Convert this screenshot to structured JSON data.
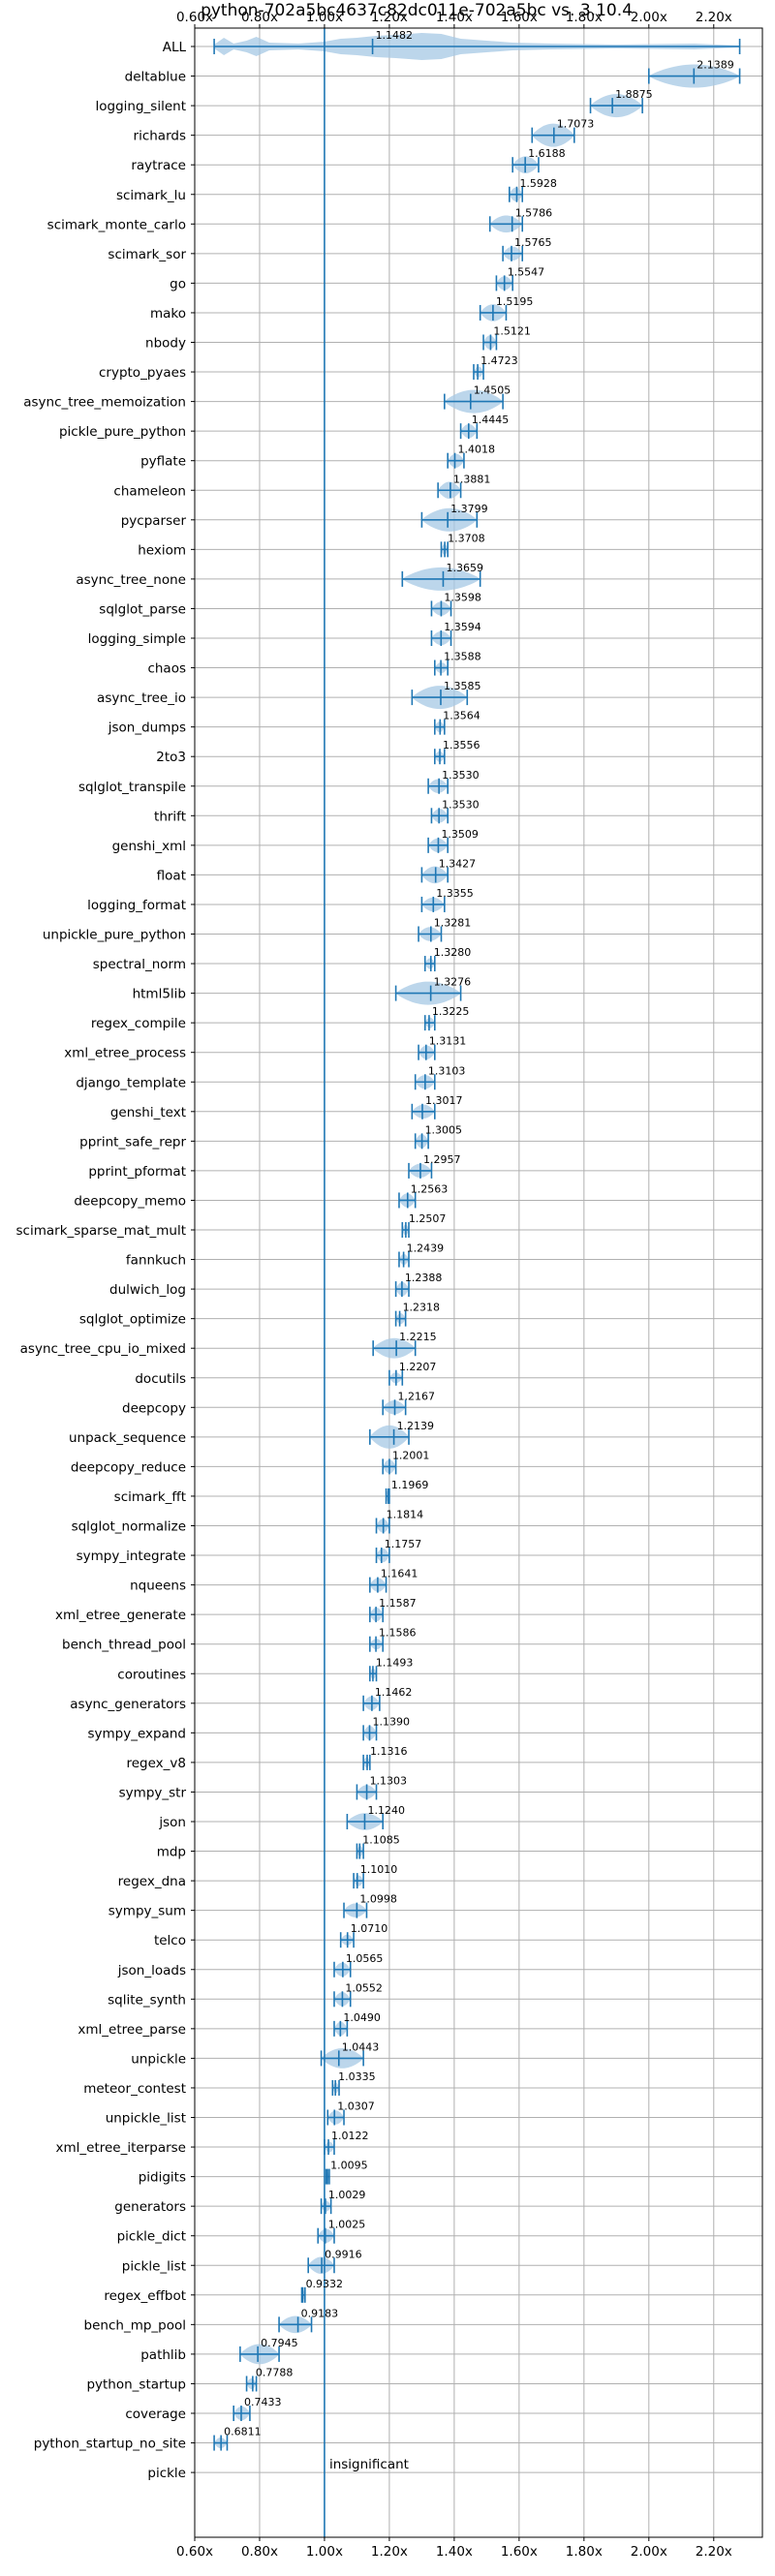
{
  "chart_data": {
    "type": "violin",
    "title": "python-702a5bc4637c82dc011e-702a5bc vs. 3.10.4",
    "xlabel": "",
    "ylabel": "",
    "xlim": [
      0.6,
      2.35
    ],
    "grid": true,
    "xticks": [
      0.6,
      0.8,
      1.0,
      1.2,
      1.4,
      1.6,
      1.8,
      2.0,
      2.2
    ],
    "xtick_labels": [
      "0.60x",
      "0.80x",
      "1.00x",
      "1.20x",
      "1.40x",
      "1.60x",
      "1.80x",
      "2.00x",
      "2.20x"
    ],
    "reference_line": 1.0,
    "annotation": "insignificant",
    "colors": {
      "accent": "#1f77b4",
      "violin": "#a6c8e4",
      "grid": "#b0b0b0"
    },
    "benchmarks": [
      {
        "name": "ALL",
        "value": 1.1482,
        "label": "1.1482",
        "min": 0.66,
        "max": 2.28,
        "spread": 0.04,
        "shape": "all"
      },
      {
        "name": "deltablue",
        "value": 2.1389,
        "label": "2.1389",
        "min": 2.0,
        "max": 2.28,
        "spread": 0.1
      },
      {
        "name": "logging_silent",
        "value": 1.8875,
        "label": "1.8875",
        "min": 1.82,
        "max": 1.98,
        "spread": 0.07
      },
      {
        "name": "richards",
        "value": 1.7073,
        "label": "1.7073",
        "min": 1.64,
        "max": 1.77,
        "spread": 0.05
      },
      {
        "name": "raytrace",
        "value": 1.6188,
        "label": "1.6188",
        "min": 1.58,
        "max": 1.66,
        "spread": 0.03
      },
      {
        "name": "scimark_lu",
        "value": 1.5928,
        "label": "1.5928",
        "min": 1.57,
        "max": 1.61,
        "spread": 0.02
      },
      {
        "name": "scimark_monte_carlo",
        "value": 1.5786,
        "label": "1.5786",
        "min": 1.51,
        "max": 1.61,
        "spread": 0.03
      },
      {
        "name": "scimark_sor",
        "value": 1.5765,
        "label": "1.5765",
        "min": 1.55,
        "max": 1.61,
        "spread": 0.02
      },
      {
        "name": "go",
        "value": 1.5547,
        "label": "1.5547",
        "min": 1.53,
        "max": 1.58,
        "spread": 0.02
      },
      {
        "name": "mako",
        "value": 1.5195,
        "label": "1.5195",
        "min": 1.48,
        "max": 1.56,
        "spread": 0.03
      },
      {
        "name": "nbody",
        "value": 1.5121,
        "label": "1.5121",
        "min": 1.49,
        "max": 1.53,
        "spread": 0.02
      },
      {
        "name": "crypto_pyaes",
        "value": 1.4723,
        "label": "1.4723",
        "min": 1.46,
        "max": 1.49,
        "spread": 0.01
      },
      {
        "name": "async_tree_memoization",
        "value": 1.4505,
        "label": "1.4505",
        "min": 1.37,
        "max": 1.55,
        "spread": 0.05
      },
      {
        "name": "pickle_pure_python",
        "value": 1.4445,
        "label": "1.4445",
        "min": 1.42,
        "max": 1.47,
        "spread": 0.02
      },
      {
        "name": "pyflate",
        "value": 1.4018,
        "label": "1.4018",
        "min": 1.38,
        "max": 1.43,
        "spread": 0.02
      },
      {
        "name": "chameleon",
        "value": 1.3881,
        "label": "1.3881",
        "min": 1.35,
        "max": 1.42,
        "spread": 0.03
      },
      {
        "name": "pycparser",
        "value": 1.3799,
        "label": "1.3799",
        "min": 1.3,
        "max": 1.47,
        "spread": 0.05
      },
      {
        "name": "hexiom",
        "value": 1.3708,
        "label": "1.3708",
        "min": 1.36,
        "max": 1.38,
        "spread": 0.01
      },
      {
        "name": "async_tree_none",
        "value": 1.3659,
        "label": "1.3659",
        "min": 1.24,
        "max": 1.48,
        "spread": 0.06
      },
      {
        "name": "sqlglot_parse",
        "value": 1.3598,
        "label": "1.3598",
        "min": 1.33,
        "max": 1.39,
        "spread": 0.02
      },
      {
        "name": "logging_simple",
        "value": 1.3594,
        "label": "1.3594",
        "min": 1.33,
        "max": 1.39,
        "spread": 0.02
      },
      {
        "name": "chaos",
        "value": 1.3588,
        "label": "1.3588",
        "min": 1.34,
        "max": 1.38,
        "spread": 0.01
      },
      {
        "name": "async_tree_io",
        "value": 1.3585,
        "label": "1.3585",
        "min": 1.27,
        "max": 1.44,
        "spread": 0.05
      },
      {
        "name": "json_dumps",
        "value": 1.3564,
        "label": "1.3564",
        "min": 1.34,
        "max": 1.37,
        "spread": 0.01
      },
      {
        "name": "2to3",
        "value": 1.3556,
        "label": "1.3556",
        "min": 1.34,
        "max": 1.37,
        "spread": 0.01
      },
      {
        "name": "sqlglot_transpile",
        "value": 1.353,
        "label": "1.3530",
        "min": 1.32,
        "max": 1.38,
        "spread": 0.02
      },
      {
        "name": "thrift",
        "value": 1.353,
        "label": "1.3530",
        "min": 1.33,
        "max": 1.38,
        "spread": 0.02
      },
      {
        "name": "genshi_xml",
        "value": 1.3509,
        "label": "1.3509",
        "min": 1.32,
        "max": 1.38,
        "spread": 0.02
      },
      {
        "name": "float",
        "value": 1.3427,
        "label": "1.3427",
        "min": 1.3,
        "max": 1.38,
        "spread": 0.03
      },
      {
        "name": "logging_format",
        "value": 1.3355,
        "label": "1.3355",
        "min": 1.3,
        "max": 1.37,
        "spread": 0.02
      },
      {
        "name": "unpickle_pure_python",
        "value": 1.3281,
        "label": "1.3281",
        "min": 1.29,
        "max": 1.36,
        "spread": 0.02
      },
      {
        "name": "spectral_norm",
        "value": 1.328,
        "label": "1.3280",
        "min": 1.31,
        "max": 1.34,
        "spread": 0.01
      },
      {
        "name": "html5lib",
        "value": 1.3276,
        "label": "1.3276",
        "min": 1.22,
        "max": 1.42,
        "spread": 0.05
      },
      {
        "name": "regex_compile",
        "value": 1.3225,
        "label": "1.3225",
        "min": 1.31,
        "max": 1.34,
        "spread": 0.01
      },
      {
        "name": "xml_etree_process",
        "value": 1.3131,
        "label": "1.3131",
        "min": 1.29,
        "max": 1.34,
        "spread": 0.02
      },
      {
        "name": "django_template",
        "value": 1.3103,
        "label": "1.3103",
        "min": 1.28,
        "max": 1.34,
        "spread": 0.02
      },
      {
        "name": "genshi_text",
        "value": 1.3017,
        "label": "1.3017",
        "min": 1.27,
        "max": 1.34,
        "spread": 0.02
      },
      {
        "name": "pprint_safe_repr",
        "value": 1.3005,
        "label": "1.3005",
        "min": 1.28,
        "max": 1.32,
        "spread": 0.02
      },
      {
        "name": "pprint_pformat",
        "value": 1.2957,
        "label": "1.2957",
        "min": 1.26,
        "max": 1.33,
        "spread": 0.02
      },
      {
        "name": "deepcopy_memo",
        "value": 1.2563,
        "label": "1.2563",
        "min": 1.23,
        "max": 1.28,
        "spread": 0.02
      },
      {
        "name": "scimark_sparse_mat_mult",
        "value": 1.2507,
        "label": "1.2507",
        "min": 1.24,
        "max": 1.26,
        "spread": 0.01
      },
      {
        "name": "fannkuch",
        "value": 1.2439,
        "label": "1.2439",
        "min": 1.23,
        "max": 1.26,
        "spread": 0.01
      },
      {
        "name": "dulwich_log",
        "value": 1.2388,
        "label": "1.2388",
        "min": 1.22,
        "max": 1.26,
        "spread": 0.02
      },
      {
        "name": "sqlglot_optimize",
        "value": 1.2318,
        "label": "1.2318",
        "min": 1.22,
        "max": 1.25,
        "spread": 0.01
      },
      {
        "name": "async_tree_cpu_io_mixed",
        "value": 1.2215,
        "label": "1.2215",
        "min": 1.15,
        "max": 1.28,
        "spread": 0.04
      },
      {
        "name": "docutils",
        "value": 1.2207,
        "label": "1.2207",
        "min": 1.2,
        "max": 1.24,
        "spread": 0.01
      },
      {
        "name": "deepcopy",
        "value": 1.2167,
        "label": "1.2167",
        "min": 1.18,
        "max": 1.25,
        "spread": 0.02
      },
      {
        "name": "unpack_sequence",
        "value": 1.2139,
        "label": "1.2139",
        "min": 1.14,
        "max": 1.26,
        "spread": 0.05
      },
      {
        "name": "deepcopy_reduce",
        "value": 1.2001,
        "label": "1.2001",
        "min": 1.18,
        "max": 1.22,
        "spread": 0.02
      },
      {
        "name": "scimark_fft",
        "value": 1.1969,
        "label": "1.1969",
        "min": 1.19,
        "max": 1.2,
        "spread": 0.01
      },
      {
        "name": "sqlglot_normalize",
        "value": 1.1814,
        "label": "1.1814",
        "min": 1.16,
        "max": 1.2,
        "spread": 0.02
      },
      {
        "name": "sympy_integrate",
        "value": 1.1757,
        "label": "1.1757",
        "min": 1.16,
        "max": 1.2,
        "spread": 0.02
      },
      {
        "name": "nqueens",
        "value": 1.1641,
        "label": "1.1641",
        "min": 1.14,
        "max": 1.19,
        "spread": 0.02
      },
      {
        "name": "xml_etree_generate",
        "value": 1.1587,
        "label": "1.1587",
        "min": 1.14,
        "max": 1.18,
        "spread": 0.02
      },
      {
        "name": "bench_thread_pool",
        "value": 1.1586,
        "label": "1.1586",
        "min": 1.14,
        "max": 1.18,
        "spread": 0.01
      },
      {
        "name": "coroutines",
        "value": 1.1493,
        "label": "1.1493",
        "min": 1.14,
        "max": 1.16,
        "spread": 0.01
      },
      {
        "name": "async_generators",
        "value": 1.1462,
        "label": "1.1462",
        "min": 1.12,
        "max": 1.17,
        "spread": 0.02
      },
      {
        "name": "sympy_expand",
        "value": 1.139,
        "label": "1.1390",
        "min": 1.12,
        "max": 1.16,
        "spread": 0.02
      },
      {
        "name": "regex_v8",
        "value": 1.1316,
        "label": "1.1316",
        "min": 1.12,
        "max": 1.14,
        "spread": 0.01
      },
      {
        "name": "sympy_str",
        "value": 1.1303,
        "label": "1.1303",
        "min": 1.1,
        "max": 1.16,
        "spread": 0.02
      },
      {
        "name": "json",
        "value": 1.124,
        "label": "1.1240",
        "min": 1.07,
        "max": 1.18,
        "spread": 0.03
      },
      {
        "name": "mdp",
        "value": 1.1085,
        "label": "1.1085",
        "min": 1.1,
        "max": 1.12,
        "spread": 0.01
      },
      {
        "name": "regex_dna",
        "value": 1.101,
        "label": "1.1010",
        "min": 1.09,
        "max": 1.12,
        "spread": 0.01
      },
      {
        "name": "sympy_sum",
        "value": 1.0998,
        "label": "1.0998",
        "min": 1.06,
        "max": 1.13,
        "spread": 0.02
      },
      {
        "name": "telco",
        "value": 1.071,
        "label": "1.0710",
        "min": 1.05,
        "max": 1.09,
        "spread": 0.01
      },
      {
        "name": "json_loads",
        "value": 1.0565,
        "label": "1.0565",
        "min": 1.03,
        "max": 1.08,
        "spread": 0.02
      },
      {
        "name": "sqlite_synth",
        "value": 1.0552,
        "label": "1.0552",
        "min": 1.03,
        "max": 1.08,
        "spread": 0.02
      },
      {
        "name": "xml_etree_parse",
        "value": 1.049,
        "label": "1.0490",
        "min": 1.03,
        "max": 1.07,
        "spread": 0.02
      },
      {
        "name": "unpickle",
        "value": 1.0443,
        "label": "1.0443",
        "min": 0.99,
        "max": 1.12,
        "spread": 0.04
      },
      {
        "name": "meteor_contest",
        "value": 1.0335,
        "label": "1.0335",
        "min": 1.025,
        "max": 1.045,
        "spread": 0.01
      },
      {
        "name": "unpickle_list",
        "value": 1.0307,
        "label": "1.0307",
        "min": 1.01,
        "max": 1.06,
        "spread": 0.02
      },
      {
        "name": "xml_etree_iterparse",
        "value": 1.0122,
        "label": "1.0122",
        "min": 1.0,
        "max": 1.03,
        "spread": 0.01
      },
      {
        "name": "pidigits",
        "value": 1.0095,
        "label": "1.0095",
        "min": 1.005,
        "max": 1.015,
        "spread": 0.005
      },
      {
        "name": "generators",
        "value": 1.0029,
        "label": "1.0029",
        "min": 0.99,
        "max": 1.02,
        "spread": 0.01
      },
      {
        "name": "pickle_dict",
        "value": 1.0025,
        "label": "1.0025",
        "min": 0.98,
        "max": 1.03,
        "spread": 0.02
      },
      {
        "name": "pickle_list",
        "value": 0.9916,
        "label": "0.9916",
        "min": 0.95,
        "max": 1.03,
        "spread": 0.03
      },
      {
        "name": "regex_effbot",
        "value": 0.9332,
        "label": "0.9332",
        "min": 0.93,
        "max": 0.94,
        "spread": 0.005
      },
      {
        "name": "bench_mp_pool",
        "value": 0.9183,
        "label": "0.9183",
        "min": 0.86,
        "max": 0.96,
        "spread": 0.03
      },
      {
        "name": "pathlib",
        "value": 0.7945,
        "label": "0.7945",
        "min": 0.74,
        "max": 0.86,
        "spread": 0.04
      },
      {
        "name": "python_startup",
        "value": 0.7788,
        "label": "0.7788",
        "min": 0.76,
        "max": 0.79,
        "spread": 0.01
      },
      {
        "name": "coverage",
        "value": 0.7433,
        "label": "0.7433",
        "min": 0.72,
        "max": 0.77,
        "spread": 0.02
      },
      {
        "name": "python_startup_no_site",
        "value": 0.6811,
        "label": "0.6811",
        "min": 0.66,
        "max": 0.7,
        "spread": 0.01
      },
      {
        "name": "pickle",
        "value": 1.0,
        "label": "",
        "min": 1.0,
        "max": 1.0,
        "spread": 0,
        "insignificant": true
      }
    ]
  }
}
